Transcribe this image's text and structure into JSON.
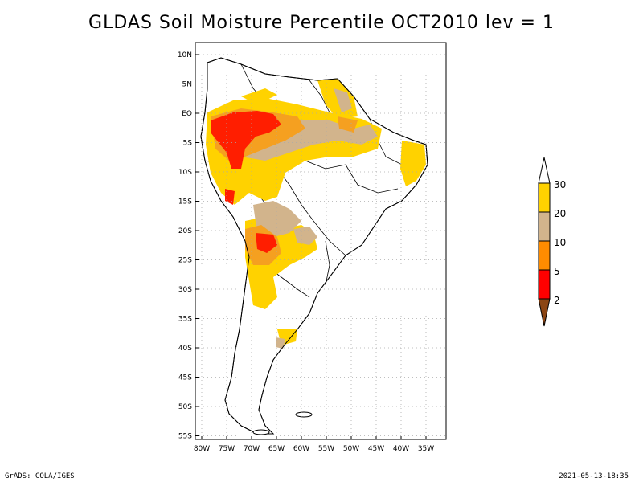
{
  "title": "GLDAS Soil Moisture Percentile OCT2010 lev = 1",
  "footer": {
    "left": "GrADS: COLA/IGES",
    "right": "2021-05-13-18:35"
  },
  "map": {
    "lat_ticks": [
      "10N",
      "5N",
      "EQ",
      "5S",
      "10S",
      "15S",
      "20S",
      "25S",
      "30S",
      "35S",
      "40S",
      "45S",
      "50S",
      "55S"
    ],
    "lon_ticks": [
      "80W",
      "75W",
      "70W",
      "65W",
      "60W",
      "55W",
      "50W",
      "45W",
      "40W",
      "35W"
    ]
  },
  "legend": {
    "labels": [
      "30",
      "20",
      "10",
      "5",
      "2"
    ],
    "colors": {
      "above30": "#ffffff",
      "c20_30": "#ffd200",
      "c10_20": "#d2b48c",
      "c5_10": "#ff8c00",
      "c2_5": "#ff0000",
      "below2": "#8b4513"
    }
  },
  "colors": {
    "yellow": "#ffd200",
    "tan": "#d2b48c",
    "orange": "#f5a020",
    "red": "#ff1e00"
  }
}
